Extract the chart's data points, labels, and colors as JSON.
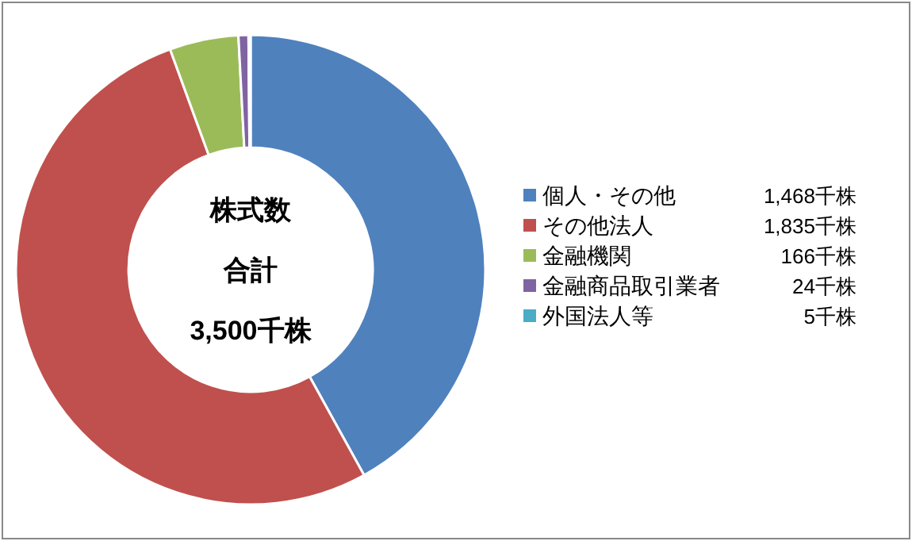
{
  "chart_data": {
    "type": "donut",
    "categories": [
      "個人・その他",
      "その他法人",
      "金融機関",
      "金融商品取引業者",
      "外国法人等"
    ],
    "values": [
      1468,
      1835,
      166,
      24,
      5
    ],
    "value_labels": [
      "1,468千株",
      "1,835千株",
      "166千株",
      "24千株",
      "5千株"
    ],
    "colors": [
      "#4f81bd",
      "#c0504d",
      "#9bbb59",
      "#8064a2",
      "#4bacc6"
    ],
    "annotations": [
      "株式数",
      "合計",
      "3,500千株"
    ],
    "legend": "right"
  }
}
